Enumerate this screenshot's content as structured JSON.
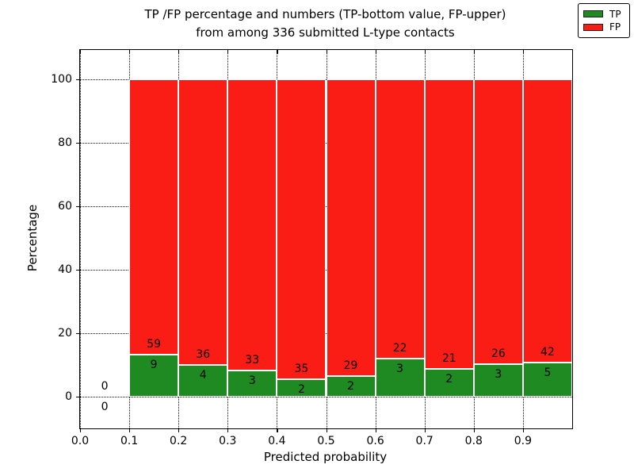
{
  "chart_data": {
    "type": "bar",
    "stacked": true,
    "title_line1": "TP /FP percentage and numbers (TP-bottom value, FP-upper)",
    "title_line2": "from among 336 submitted L-type contacts",
    "xlabel": "Predicted probability",
    "ylabel": "Percentage",
    "total_contacts": 336,
    "xlim": [
      0.0,
      1.0
    ],
    "ylim": [
      -10,
      109.25
    ],
    "xtick_labels": [
      "0.0",
      "0.1",
      "0.2",
      "0.3",
      "0.4",
      "0.5",
      "0.6",
      "0.7",
      "0.8",
      "0.9"
    ],
    "xtick_values": [
      0.0,
      0.1,
      0.2,
      0.3,
      0.4,
      0.5,
      0.6,
      0.7,
      0.8,
      0.9
    ],
    "ytick_labels": [
      "0",
      "20",
      "40",
      "60",
      "80",
      "100"
    ],
    "ytick_values": [
      0,
      20,
      40,
      60,
      80,
      100
    ],
    "grid": "dotted",
    "legend_position": "upper right",
    "series": [
      {
        "name": "TP",
        "color": "#1f8a21"
      },
      {
        "name": "FP",
        "color": "#fa1d15"
      }
    ],
    "bins": [
      {
        "x_start": 0.0,
        "x_end": 0.1,
        "tp": 0,
        "fp": 0
      },
      {
        "x_start": 0.1,
        "x_end": 0.2,
        "tp": 9,
        "fp": 59
      },
      {
        "x_start": 0.2,
        "x_end": 0.3,
        "tp": 4,
        "fp": 36
      },
      {
        "x_start": 0.3,
        "x_end": 0.4,
        "tp": 3,
        "fp": 33
      },
      {
        "x_start": 0.4,
        "x_end": 0.5,
        "tp": 2,
        "fp": 35
      },
      {
        "x_start": 0.5,
        "x_end": 0.6,
        "tp": 2,
        "fp": 29
      },
      {
        "x_start": 0.6,
        "x_end": 0.7,
        "tp": 3,
        "fp": 22
      },
      {
        "x_start": 0.7,
        "x_end": 0.8,
        "tp": 2,
        "fp": 21
      },
      {
        "x_start": 0.8,
        "x_end": 0.9,
        "tp": 3,
        "fp": 26
      },
      {
        "x_start": 0.9,
        "x_end": 1.0,
        "tp": 5,
        "fp": 42
      }
    ]
  }
}
